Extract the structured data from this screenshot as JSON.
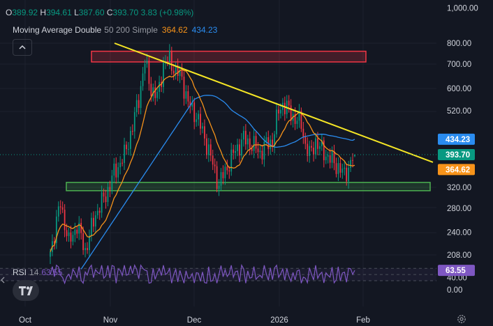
{
  "ohlc": {
    "o_label": "O",
    "o_value": "389.92",
    "h_label": "H",
    "h_value": "394.61",
    "l_label": "L",
    "l_value": "387.60",
    "c_label": "C",
    "c_value": "393.70",
    "change": "3.83 (+0.98%)"
  },
  "indicator": {
    "name": "Moving Average Double",
    "params": "50 200 Simple",
    "ma50_value": "364.62",
    "ma200_value": "434.23"
  },
  "rsi": {
    "name": "RSI",
    "period": "14",
    "value": "63.55",
    "badge": "63.55",
    "axis_labels": [
      "40.00",
      "0.00"
    ]
  },
  "price_axis": {
    "labels": [
      "1,000.00",
      "800.00",
      "700.00",
      "600.00",
      "520.00",
      "320.00",
      "280.00",
      "240.00",
      "208.00"
    ]
  },
  "badges": {
    "ma200": "434.23",
    "last": "393.70",
    "ma50": "364.62"
  },
  "time_axis": {
    "labels": [
      "Oct",
      "Nov",
      "Dec",
      "2026",
      "Feb"
    ]
  },
  "colors": {
    "background": "#131722",
    "up": "#089981",
    "down": "#f23645",
    "ma50": "#f7931a",
    "ma200": "#2a8cf0",
    "trendline": "#f5e625",
    "resistance": "#f23645",
    "support": "#4caf50",
    "rsi": "#7e57c2"
  },
  "chart_data": {
    "type": "candlestick",
    "scale": "log",
    "ylim": [
      190,
      1000
    ],
    "x": [
      "Oct",
      "Nov",
      "Dec",
      "2026",
      "Feb"
    ],
    "price_anchors": [
      [
        0,
        212
      ],
      [
        5,
        290
      ],
      [
        9,
        224
      ],
      [
        13,
        252
      ],
      [
        17,
        214
      ],
      [
        22,
        270
      ],
      [
        27,
        305
      ],
      [
        31,
        350
      ],
      [
        36,
        392
      ],
      [
        40,
        470
      ],
      [
        43,
        565
      ],
      [
        46,
        710
      ],
      [
        49,
        600
      ],
      [
        52,
        565
      ],
      [
        55,
        700
      ],
      [
        58,
        720
      ],
      [
        61,
        670
      ],
      [
        64,
        640
      ],
      [
        67,
        545
      ],
      [
        71,
        505
      ],
      [
        75,
        440
      ],
      [
        79,
        370
      ],
      [
        82,
        325
      ],
      [
        84,
        345
      ],
      [
        87,
        375
      ],
      [
        90,
        405
      ],
      [
        94,
        435
      ],
      [
        98,
        420
      ],
      [
        102,
        400
      ],
      [
        105,
        420
      ],
      [
        108,
        430
      ],
      [
        111,
        520
      ],
      [
        113,
        545
      ],
      [
        116,
        520
      ],
      [
        119,
        495
      ],
      [
        122,
        480
      ],
      [
        124,
        420
      ],
      [
        126,
        392
      ],
      [
        129,
        430
      ],
      [
        131,
        410
      ],
      [
        134,
        395
      ],
      [
        137,
        378
      ],
      [
        140,
        365
      ],
      [
        143,
        345
      ],
      [
        146,
        375
      ],
      [
        148,
        393.7
      ]
    ],
    "last": {
      "o": 389.92,
      "h": 394.61,
      "l": 387.6,
      "c": 393.7,
      "change": 3.83,
      "change_pct": 0.98
    },
    "ma50": {
      "name": "MA 50",
      "last": 364.62
    },
    "ma200": {
      "name": "MA 200",
      "last": 434.23
    },
    "trendline": {
      "start": [
        "Oct end",
        800
      ],
      "end": [
        "after Feb",
        375
      ]
    },
    "zones": [
      {
        "name": "resistance",
        "low": 710,
        "high": 760
      },
      {
        "name": "support",
        "low": 313,
        "high": 330
      }
    ],
    "rsi": {
      "period": 14,
      "last": 63.55,
      "ylim": [
        0,
        100
      ],
      "bands": [
        30,
        50,
        70
      ]
    }
  }
}
